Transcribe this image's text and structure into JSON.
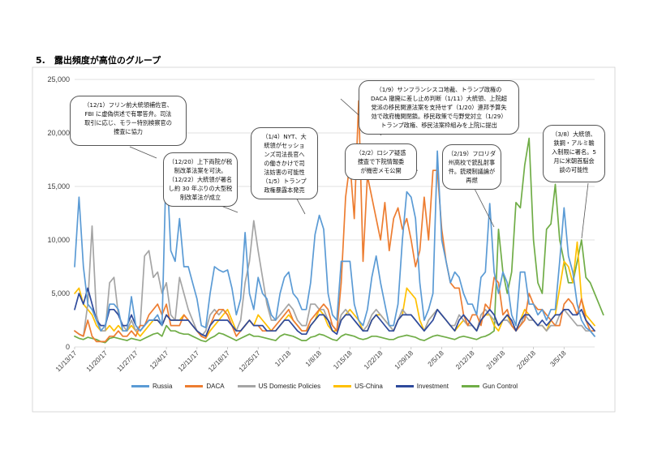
{
  "page": {
    "heading": "5.　露出頻度が高位のグループ"
  },
  "chart_data": {
    "type": "line",
    "title": "",
    "xlabel": "",
    "ylabel": "",
    "ylim": [
      0,
      25000
    ],
    "y_ticks": [
      0,
      5000,
      10000,
      15000,
      20000,
      25000
    ],
    "y_tick_labels": [
      "0",
      "5,000",
      "10,000",
      "15,000",
      "20,000",
      "25,000"
    ],
    "grid": true,
    "legend_position": "bottom",
    "x_ticks": [
      {
        "day": 0,
        "label": "11/13/17"
      },
      {
        "day": 7,
        "label": "11/20/17"
      },
      {
        "day": 14,
        "label": "11/27/17"
      },
      {
        "day": 21,
        "label": "12/4/17"
      },
      {
        "day": 28,
        "label": "12/11/17"
      },
      {
        "day": 35,
        "label": "12/18/17"
      },
      {
        "day": 42,
        "label": "12/25/17"
      },
      {
        "day": 49,
        "label": "1/1/18"
      },
      {
        "day": 56,
        "label": "1/8/18"
      },
      {
        "day": 63,
        "label": "1/15/18"
      },
      {
        "day": 70,
        "label": "1/22/18"
      },
      {
        "day": 77,
        "label": "1/29/18"
      },
      {
        "day": 84,
        "label": "2/5/18"
      },
      {
        "day": 91,
        "label": "2/12/18"
      },
      {
        "day": 98,
        "label": "2/19/18"
      },
      {
        "day": 105,
        "label": "2/26/18"
      },
      {
        "day": 112,
        "label": "3/5/18"
      }
    ],
    "x_range": [
      0,
      119
    ],
    "series": [
      {
        "name": "Russia",
        "color": "#5b9bd5",
        "values": [
          7500,
          14000,
          7500,
          4000,
          3500,
          2500,
          1500,
          2000,
          4000,
          4000,
          3500,
          1500,
          1500,
          4700,
          2000,
          1500,
          2000,
          2500,
          2500,
          3000,
          2000,
          17800,
          9000,
          8000,
          12000,
          7500,
          7500,
          6000,
          4500,
          2000,
          1800,
          5000,
          7500,
          7200,
          7000,
          7200,
          5500,
          3000,
          4500,
          10700,
          5000,
          3500,
          6500,
          5000,
          4500,
          3000,
          2500,
          5000,
          6500,
          7000,
          5000,
          4500,
          3500,
          3500,
          6000,
          10500,
          12300,
          11000,
          5000,
          3000,
          2500,
          8000,
          8000,
          8000,
          4000,
          2500,
          2000,
          3500,
          6500,
          8500,
          6000,
          4000,
          2000,
          2000,
          4000,
          10000,
          14500,
          14000,
          12000,
          6000,
          2500,
          3500,
          5000,
          18300,
          10000,
          8000,
          6000,
          7000,
          6500,
          5000,
          4000,
          4000,
          3000,
          6500,
          7000,
          13400,
          7000,
          5000,
          7000,
          6000,
          3000,
          2000,
          7000,
          7000,
          4000,
          4000,
          3000,
          3500,
          2500,
          3500,
          3500,
          8000,
          13000,
          8500,
          7000,
          4000,
          2500,
          1800,
          1500,
          1000
        ]
      },
      {
        "name": "DACA",
        "color": "#ed7d31",
        "values": [
          1500,
          1200,
          1000,
          2500,
          1000,
          500,
          500,
          500,
          1000,
          1000,
          1500,
          1000,
          1000,
          1500,
          1000,
          2000,
          2000,
          3000,
          3500,
          4000,
          3000,
          4000,
          2000,
          2000,
          2000,
          3000,
          2500,
          2000,
          1500,
          1000,
          800,
          2000,
          3000,
          3500,
          3500,
          3000,
          2000,
          1000,
          1500,
          2000,
          2500,
          2000,
          2000,
          1500,
          1500,
          1500,
          2000,
          2500,
          3000,
          3500,
          2500,
          2000,
          1500,
          1500,
          2500,
          3000,
          3500,
          4000,
          3500,
          2000,
          1500,
          6000,
          14000,
          17200,
          12000,
          23000,
          8000,
          16000,
          14000,
          12000,
          10000,
          13500,
          9000,
          12000,
          13000,
          11000,
          12000,
          10000,
          7500,
          9000,
          14000,
          10000,
          16500,
          16500,
          11000,
          8000,
          6000,
          5500,
          5500,
          3000,
          2000,
          3000,
          3000,
          2000,
          4000,
          3500,
          6500,
          6000,
          3000,
          3500,
          2000,
          1500,
          2000,
          2500,
          5000,
          4000,
          3500,
          3500,
          3000,
          2500,
          2000,
          2000,
          4000,
          4500,
          4000,
          3000,
          4500,
          2500,
          1500,
          1500
        ]
      },
      {
        "name": "US Domestic Policies",
        "color": "#a5a5a5",
        "values": [
          1500,
          1200,
          1000,
          4000,
          11300,
          3000,
          1500,
          1500,
          6000,
          6500,
          3000,
          2000,
          1500,
          2500,
          1500,
          2000,
          8500,
          9000,
          6500,
          7000,
          5000,
          6000,
          3000,
          2500,
          6500,
          5000,
          3500,
          2500,
          1500,
          1000,
          1500,
          3000,
          3500,
          3000,
          3500,
          3000,
          2000,
          1500,
          2500,
          6000,
          8000,
          11800,
          9000,
          6500,
          4000,
          2500,
          2500,
          3000,
          3500,
          4000,
          3500,
          2500,
          2000,
          2000,
          4000,
          4000,
          3500,
          3500,
          2500,
          2000,
          1500,
          3000,
          3500,
          3000,
          2500,
          2000,
          1500,
          2000,
          3000,
          3500,
          3000,
          2500,
          2000,
          1500,
          2500,
          3500,
          3000,
          3000,
          2500,
          2000,
          1500,
          2500,
          3000,
          3500,
          3000,
          2500,
          2000,
          2000,
          3000,
          2500,
          2000,
          2000,
          1500,
          3000,
          3500,
          3000,
          2500,
          2000,
          2500,
          2500,
          2000,
          1500,
          2000,
          3000,
          2500,
          2500,
          2000,
          2000,
          1500,
          2000,
          2000,
          3000,
          3500,
          3000,
          2500,
          2000,
          2000,
          1500,
          1500,
          1000
        ]
      },
      {
        "name": "US-China",
        "color": "#ffc000",
        "values": [
          5000,
          5500,
          4000,
          3500,
          3000,
          2000,
          1500,
          1500,
          2000,
          1500,
          2000,
          1500,
          1500,
          2000,
          1500,
          1000,
          1500,
          2000,
          2500,
          2500,
          2000,
          3000,
          2500,
          2500,
          2500,
          3000,
          2500,
          2000,
          1500,
          1000,
          800,
          1500,
          2000,
          2500,
          3000,
          3500,
          2500,
          1500,
          1500,
          2000,
          2500,
          2000,
          3000,
          2500,
          2000,
          1500,
          1500,
          2000,
          2500,
          3000,
          2500,
          2000,
          1500,
          1500,
          2000,
          2500,
          3500,
          3000,
          2000,
          1500,
          1500,
          2500,
          3000,
          3500,
          3000,
          2500,
          1500,
          1500,
          2500,
          3000,
          3000,
          2500,
          2000,
          1500,
          2500,
          3000,
          5500,
          5000,
          4500,
          2500,
          1500,
          2500,
          3000,
          3500,
          3000,
          2500,
          2000,
          1500,
          2000,
          2500,
          2000,
          2000,
          1500,
          2500,
          3000,
          3000,
          2000,
          1500,
          2500,
          3000,
          2000,
          1500,
          2500,
          3500,
          3000,
          2500,
          2000,
          2000,
          1500,
          2500,
          3000,
          5500,
          8000,
          7500,
          6000,
          9800,
          4500,
          3000,
          2500,
          2000
        ]
      },
      {
        "name": "Investment",
        "color": "#2e4a9c",
        "values": [
          3500,
          5000,
          4000,
          5500,
          4000,
          2500,
          2000,
          2000,
          3500,
          3500,
          3000,
          2000,
          2000,
          3000,
          2000,
          1500,
          2000,
          2500,
          2500,
          2500,
          2000,
          3000,
          2500,
          2500,
          2500,
          2500,
          2500,
          2000,
          1500,
          1200,
          1000,
          2000,
          2500,
          2500,
          2500,
          2500,
          2000,
          1500,
          1500,
          2000,
          2500,
          2000,
          2000,
          2000,
          1500,
          1500,
          1500,
          2000,
          2500,
          2500,
          2000,
          1500,
          1200,
          1200,
          2000,
          2500,
          3000,
          3000,
          2500,
          1500,
          1200,
          2500,
          3000,
          3000,
          2500,
          2000,
          1500,
          1500,
          2500,
          3000,
          2500,
          2000,
          1500,
          1500,
          2500,
          3000,
          3000,
          3000,
          2500,
          2000,
          1500,
          2000,
          2500,
          3500,
          3000,
          2500,
          2000,
          1500,
          2500,
          3000,
          2500,
          2000,
          1500,
          2500,
          3000,
          3500,
          3000,
          2000,
          2500,
          3000,
          2500,
          1500,
          2500,
          3000,
          3000,
          2500,
          2000,
          2500,
          2000,
          2500,
          3000,
          3000,
          3500,
          3500,
          3000,
          3000,
          3500,
          2500,
          2000,
          1500
        ]
      },
      {
        "name": "Gun Control",
        "color": "#70ad47",
        "values": [
          1000,
          800,
          700,
          900,
          800,
          700,
          500,
          400,
          800,
          900,
          800,
          700,
          600,
          800,
          700,
          600,
          800,
          1000,
          1200,
          1300,
          1000,
          2000,
          1500,
          1500,
          1300,
          1200,
          1200,
          1000,
          800,
          600,
          500,
          800,
          1000,
          1300,
          1200,
          1000,
          800,
          600,
          800,
          1000,
          1200,
          1000,
          1000,
          900,
          800,
          700,
          600,
          1000,
          1200,
          1100,
          1000,
          800,
          600,
          600,
          900,
          1000,
          1200,
          1100,
          900,
          700,
          600,
          1000,
          1200,
          1100,
          1000,
          800,
          700,
          800,
          1000,
          1000,
          900,
          800,
          700,
          700,
          900,
          1000,
          1100,
          1000,
          900,
          700,
          600,
          800,
          1000,
          1100,
          1000,
          900,
          800,
          700,
          900,
          1000,
          900,
          800,
          700,
          900,
          1000,
          1200,
          1500,
          11000,
          7000,
          5000,
          7000,
          13500,
          13000,
          17000,
          19500,
          10000,
          6000,
          5000,
          11000,
          11500,
          15200,
          10000,
          8000,
          6000,
          6000,
          8000,
          10000,
          6500,
          6000,
          5000,
          4000,
          3000
        ]
      }
    ],
    "annotations": [
      {
        "id": "a1",
        "text": "（12/1）フリン前大統領補佐官、\nFBI に虚偽供述で有罪答弁。司法\n取引に応じ、モラー特別検察官の\n捜査に協力"
      },
      {
        "id": "a2",
        "text": "（12/20）上下両院が税\n制改革法案を可決。\n（12/22）大統領が署名\nし約 30 年ぶりの大型税\n制改革法が成立"
      },
      {
        "id": "a3",
        "text": "（1/4）NYT、大\n統領がセッショ\nンズ司法長官へ\nの働きかけで司\n法妨害の可能性\n（1/5）トランプ\n政権暴露本発売"
      },
      {
        "id": "a4",
        "text": "（1/9）サンフランシスコ地裁、トランプ政権の\nDACA 撤廃に差し止め判断（1/11）大統領、上院超\n党派の移民関連法案を支持せず（1/20）連邦予算失\n効で政府機関閉鎖。移民政策で与野党対立（1/29）\nトランプ政権、移民法案枠組みを上院に提出"
      },
      {
        "id": "a5",
        "text": "（2/2）ロシア疑惑\n捜査で下院情報委\nが機密メモ公開"
      },
      {
        "id": "a6",
        "text": "（2/19）フロリダ\n州高校で銃乱射事\n件。銃規制議論が\n再燃"
      },
      {
        "id": "a7",
        "text": "（3/8）大統領、\n鉄鋼・アルミ輸\n入制限に署名。5\n月に米朝首脳会\n談の可能性"
      }
    ]
  }
}
